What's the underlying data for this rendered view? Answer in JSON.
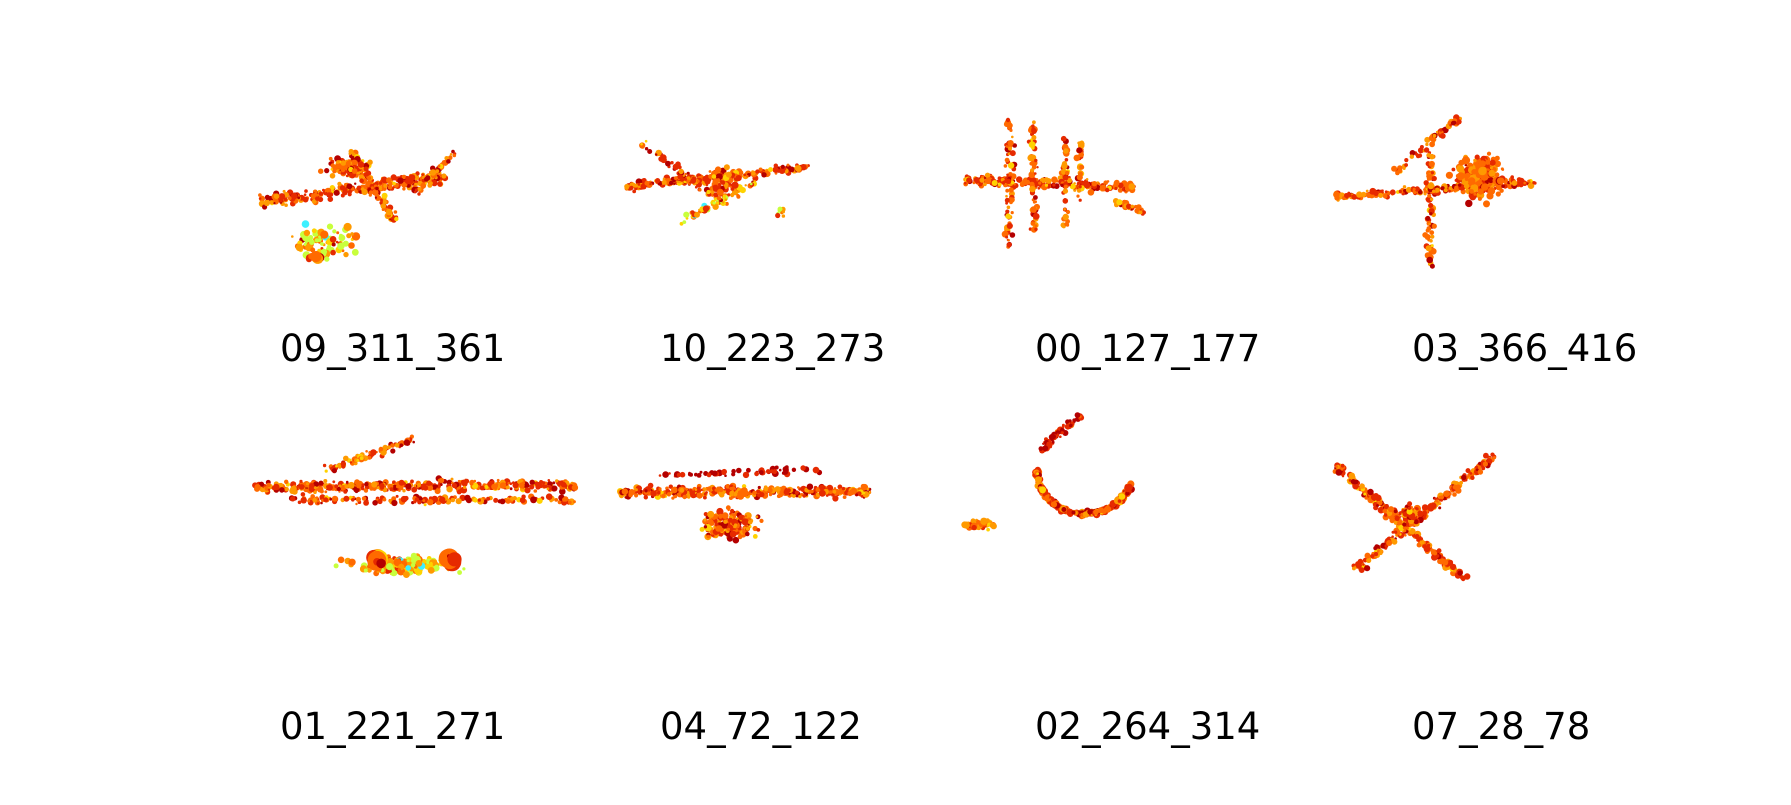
{
  "figure": {
    "panels": [
      {
        "label": "09_311_361"
      },
      {
        "label": "10_223_273"
      },
      {
        "label": "00_127_177"
      },
      {
        "label": "03_366_416"
      },
      {
        "label": "01_221_271"
      },
      {
        "label": "04_72_122"
      },
      {
        "label": "02_264_314"
      },
      {
        "label": "07_28_78"
      }
    ],
    "colormap": [
      "#b40000",
      "#e62a00",
      "#ff6a00",
      "#ff9a00",
      "#ffd200",
      "#c8ff3c",
      "#3cf0ff"
    ]
  }
}
